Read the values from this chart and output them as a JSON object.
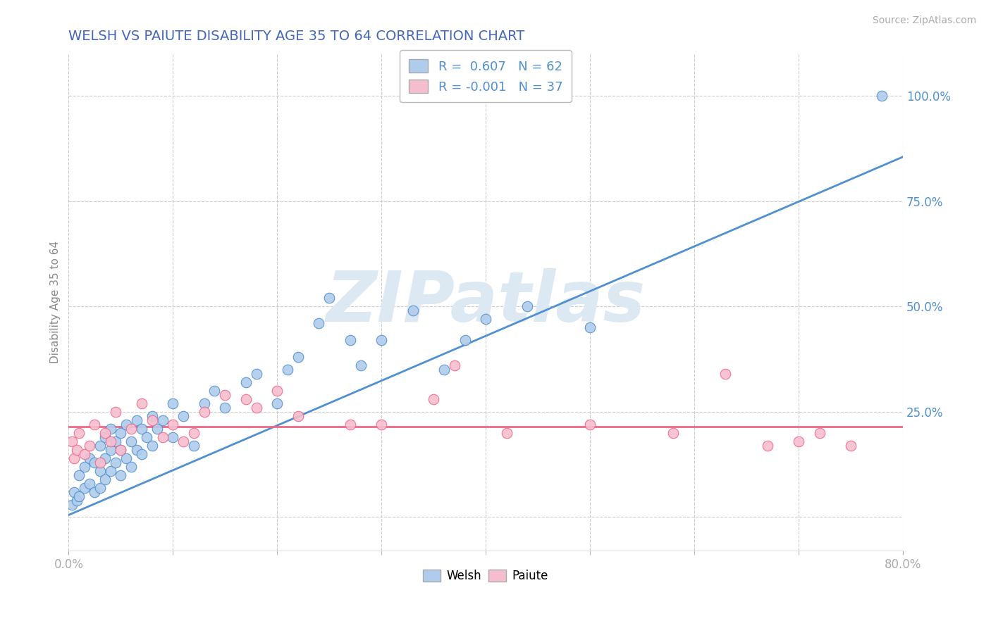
{
  "title": "WELSH VS PAIUTE DISABILITY AGE 35 TO 64 CORRELATION CHART",
  "source": "Source: ZipAtlas.com",
  "ylabel": "Disability Age 35 to 64",
  "x_min": 0.0,
  "x_max": 0.8,
  "y_min": -0.08,
  "y_max": 1.1,
  "welsh_r": 0.607,
  "welsh_n": 62,
  "paiute_r": -0.001,
  "paiute_n": 37,
  "welsh_color": "#b0ccec",
  "paiute_color": "#f5bece",
  "welsh_line_color": "#5090d0",
  "paiute_line_color": "#f06888",
  "title_color": "#4466bb",
  "source_color": "#aaaaaa",
  "watermark_color": "#dce8f2",
  "grid_color": "#cccccc",
  "tick_color": "#aaaaaa",
  "right_tick_color": "#5090d0",
  "legend_r_color": "#5090d0",
  "welsh_line_y0": 0.005,
  "welsh_line_y1": 0.855,
  "paiute_line_y": 0.215,
  "welsh_scatter_x": [
    0.003,
    0.005,
    0.008,
    0.01,
    0.01,
    0.015,
    0.015,
    0.02,
    0.02,
    0.025,
    0.025,
    0.03,
    0.03,
    0.03,
    0.035,
    0.035,
    0.035,
    0.04,
    0.04,
    0.04,
    0.045,
    0.045,
    0.05,
    0.05,
    0.05,
    0.055,
    0.055,
    0.06,
    0.06,
    0.065,
    0.065,
    0.07,
    0.07,
    0.075,
    0.08,
    0.08,
    0.085,
    0.09,
    0.1,
    0.1,
    0.11,
    0.12,
    0.13,
    0.14,
    0.15,
    0.17,
    0.18,
    0.2,
    0.21,
    0.22,
    0.24,
    0.25,
    0.27,
    0.28,
    0.3,
    0.33,
    0.36,
    0.38,
    0.4,
    0.44,
    0.5,
    0.78
  ],
  "welsh_scatter_y": [
    0.03,
    0.06,
    0.04,
    0.05,
    0.1,
    0.07,
    0.12,
    0.08,
    0.14,
    0.06,
    0.13,
    0.07,
    0.11,
    0.17,
    0.09,
    0.14,
    0.19,
    0.11,
    0.16,
    0.21,
    0.13,
    0.18,
    0.1,
    0.16,
    0.2,
    0.14,
    0.22,
    0.12,
    0.18,
    0.16,
    0.23,
    0.15,
    0.21,
    0.19,
    0.17,
    0.24,
    0.21,
    0.23,
    0.19,
    0.27,
    0.24,
    0.17,
    0.27,
    0.3,
    0.26,
    0.32,
    0.34,
    0.27,
    0.35,
    0.38,
    0.46,
    0.52,
    0.42,
    0.36,
    0.42,
    0.49,
    0.35,
    0.42,
    0.47,
    0.5,
    0.45,
    1.0
  ],
  "paiute_scatter_x": [
    0.003,
    0.005,
    0.008,
    0.01,
    0.015,
    0.02,
    0.025,
    0.03,
    0.035,
    0.04,
    0.045,
    0.05,
    0.06,
    0.07,
    0.08,
    0.09,
    0.1,
    0.11,
    0.12,
    0.13,
    0.15,
    0.17,
    0.18,
    0.2,
    0.22,
    0.27,
    0.3,
    0.35,
    0.37,
    0.42,
    0.5,
    0.58,
    0.63,
    0.67,
    0.7,
    0.72,
    0.75
  ],
  "paiute_scatter_y": [
    0.18,
    0.14,
    0.16,
    0.2,
    0.15,
    0.17,
    0.22,
    0.13,
    0.2,
    0.18,
    0.25,
    0.16,
    0.21,
    0.27,
    0.23,
    0.19,
    0.22,
    0.18,
    0.2,
    0.25,
    0.29,
    0.28,
    0.26,
    0.3,
    0.24,
    0.22,
    0.22,
    0.28,
    0.36,
    0.2,
    0.22,
    0.2,
    0.34,
    0.17,
    0.18,
    0.2,
    0.17
  ]
}
